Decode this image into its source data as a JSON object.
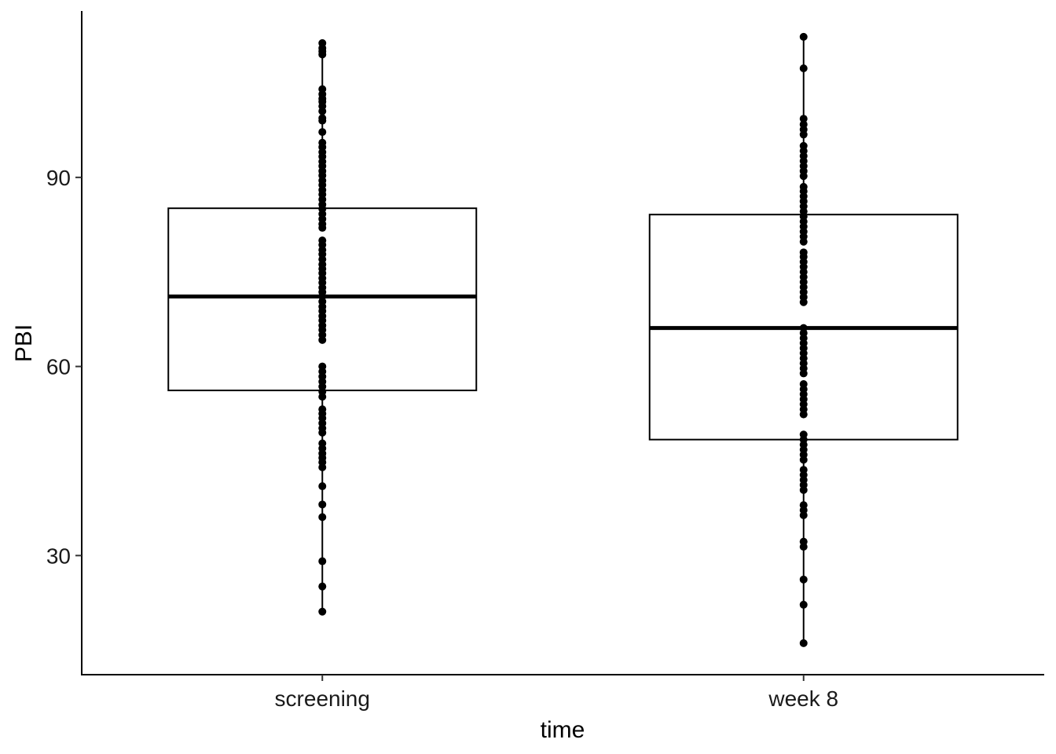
{
  "chart_data": {
    "type": "boxplot",
    "title": "",
    "xlabel": "time",
    "ylabel": "PBI",
    "categories": [
      "screening",
      "week 8"
    ],
    "yticks": [
      30,
      60,
      90
    ],
    "ylim": [
      11.1,
      116.4
    ],
    "grid": false,
    "legend": "none",
    "boxes": [
      {
        "category": "screening",
        "q1": 56.2,
        "median": 71.1,
        "q3": 85.1,
        "whisker_low": 21.1,
        "whisker_high": 111.3
      },
      {
        "category": "week 8",
        "q1": 48.4,
        "median": 66.1,
        "q3": 84.1,
        "whisker_low": 16.1,
        "whisker_high": 112.3
      }
    ],
    "points": [
      {
        "category": "screening",
        "values": [
          111.3,
          110.5,
          110.0,
          109.5,
          104.0,
          103.2,
          102.5,
          102.0,
          101.3,
          100.5,
          99.4,
          99.0,
          97.2,
          95.5,
          94.8,
          94.0,
          93.3,
          92.5,
          91.8,
          91.0,
          90.3,
          89.5,
          88.8,
          88.0,
          87.3,
          86.5,
          85.7,
          85.0,
          84.2,
          83.4,
          82.6,
          82.0,
          80.0,
          79.3,
          78.5,
          77.8,
          77.0,
          76.2,
          75.5,
          74.8,
          74.0,
          73.3,
          72.5,
          71.8,
          71.1,
          70.3,
          69.5,
          68.8,
          68.0,
          67.3,
          66.5,
          65.8,
          65.0,
          64.2,
          60.0,
          59.2,
          58.4,
          57.6,
          56.8,
          56.0,
          55.2,
          53.2,
          52.5,
          51.8,
          51.0,
          50.2,
          49.5,
          47.8,
          47.0,
          46.2,
          45.5,
          44.8,
          44.0,
          41.0,
          38.1,
          36.1,
          29.1,
          25.1,
          21.1
        ]
      },
      {
        "category": "week 8",
        "values": [
          112.3,
          107.3,
          99.3,
          98.4,
          97.6,
          96.8,
          95.0,
          94.2,
          93.4,
          92.6,
          91.8,
          91.0,
          90.2,
          88.5,
          87.8,
          87.0,
          86.2,
          85.4,
          84.6,
          83.8,
          83.0,
          82.2,
          81.4,
          80.6,
          79.8,
          78.1,
          77.4,
          76.6,
          75.8,
          75.0,
          74.2,
          73.4,
          72.6,
          71.8,
          71.0,
          70.2,
          66.1,
          65.3,
          64.5,
          63.7,
          62.9,
          62.1,
          61.3,
          60.5,
          59.7,
          58.9,
          57.2,
          56.4,
          55.6,
          54.8,
          54.0,
          53.2,
          52.4,
          49.2,
          48.4,
          47.6,
          46.8,
          46.0,
          45.2,
          43.6,
          42.8,
          42.0,
          41.2,
          40.4,
          38.0,
          37.2,
          36.4,
          32.2,
          31.4,
          26.2,
          22.2,
          16.1
        ]
      }
    ]
  }
}
